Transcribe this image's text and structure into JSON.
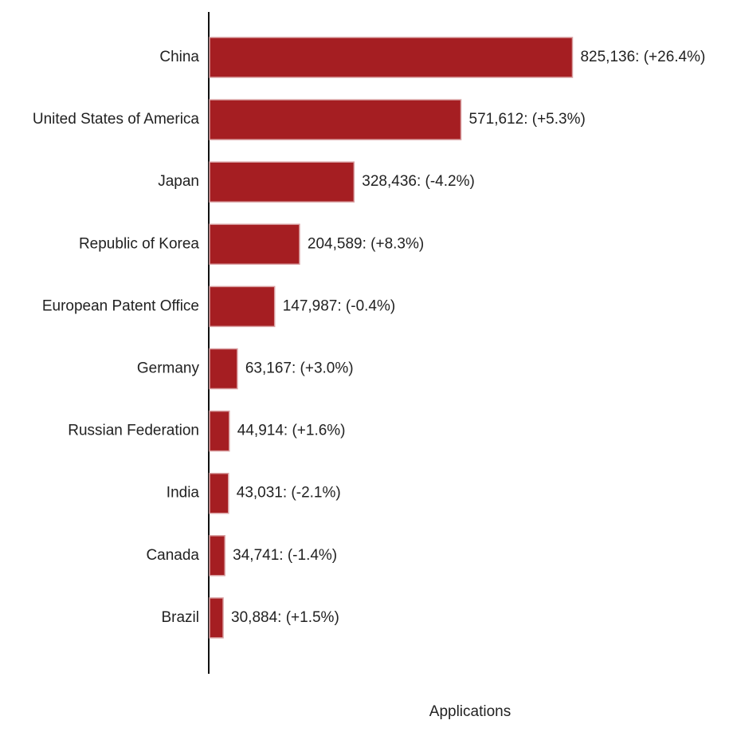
{
  "chart_data": {
    "type": "bar",
    "orientation": "horizontal",
    "x_label": "Applications",
    "categories": [
      "China",
      "United States of America",
      "Japan",
      "Republic of Korea",
      "European Patent Office",
      "Germany",
      "Russian Federation",
      "India",
      "Canada",
      "Brazil"
    ],
    "values": [
      825136,
      571612,
      328436,
      204589,
      147987,
      63167,
      44914,
      43031,
      34741,
      30884
    ],
    "value_labels": [
      "825,136: (+26.4%)",
      "571,612: (+5.3%)",
      "328,436: (-4.2%)",
      "204,589: (+8.3%)",
      "147,987: (-0.4%)",
      "63,167: (+3.0%)",
      "44,914: (+1.6%)",
      "43,031: (-2.1%)",
      "34,741: (-1.4%)",
      "30,884: (+1.5%)"
    ],
    "color": "#a51e22",
    "xlim": [
      0,
      1000000
    ]
  }
}
